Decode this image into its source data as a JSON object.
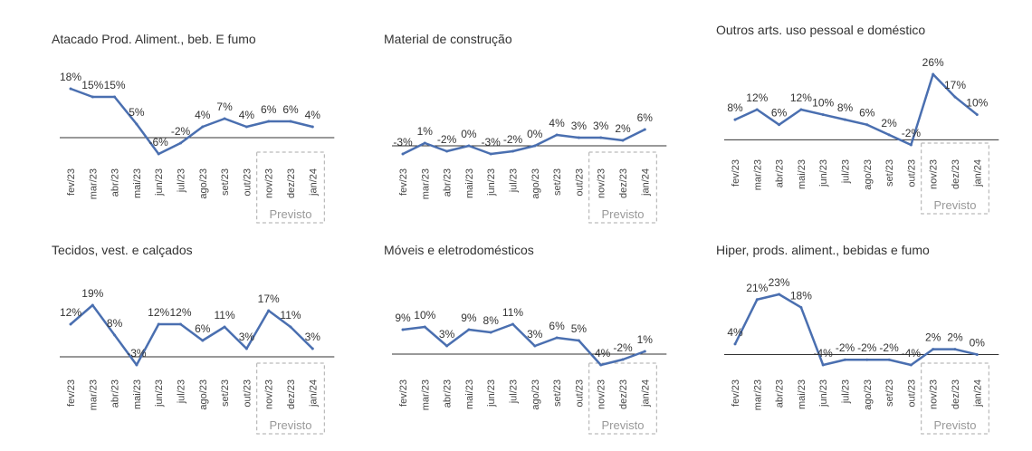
{
  "chart_data": [
    {
      "type": "line",
      "title": "Atacado Prod. Aliment., beb. E fumo",
      "color": "#4a6fb0",
      "annotation": "Previsto",
      "categories": [
        "fev/23",
        "mar/23",
        "abr/23",
        "mai/23",
        "jun/23",
        "jul/23",
        "ago/23",
        "set/23",
        "out/23",
        "nov/23",
        "dez/23",
        "jan/24"
      ],
      "values": [
        18,
        15,
        15,
        5,
        -6,
        -2,
        4,
        7,
        4,
        6,
        6,
        4
      ],
      "value_labels": [
        "18%",
        "15%",
        "15%",
        "5%",
        "-6%",
        "-2%",
        "4%",
        "7%",
        "4%",
        "6%",
        "6%",
        "4%"
      ]
    },
    {
      "type": "line",
      "title": "Material de construção",
      "color": "#4a6fb0",
      "annotation": "Previsto",
      "categories": [
        "fev/23",
        "mar/23",
        "abr/23",
        "mai/23",
        "jun/23",
        "jul/23",
        "ago/23",
        "set/23",
        "out/23",
        "nov/23",
        "dez/23",
        "jan/24"
      ],
      "values": [
        -3,
        1,
        -2,
        0,
        -3,
        -2,
        0,
        4,
        3,
        3,
        2,
        6
      ],
      "value_labels": [
        "-3%",
        "1%",
        "-2%",
        "0%",
        "-3%",
        "-2%",
        "0%",
        "4%",
        "3%",
        "3%",
        "2%",
        "6%"
      ]
    },
    {
      "type": "line",
      "title": "Outros arts. uso pessoal e doméstico",
      "color": "#4a6fb0",
      "annotation": "Previsto",
      "categories": [
        "fev/23",
        "mar/23",
        "abr/23",
        "mai/23",
        "jun/23",
        "jul/23",
        "ago/23",
        "set/23",
        "out/23",
        "nov/23",
        "dez/23",
        "jan/24"
      ],
      "values": [
        8,
        12,
        6,
        12,
        10,
        8,
        6,
        2,
        -2,
        26,
        17,
        10
      ],
      "value_labels": [
        "8%",
        "12%",
        "6%",
        "12%",
        "10%",
        "8%",
        "6%",
        "2%",
        "-2%",
        "26%",
        "17%",
        "10%"
      ]
    },
    {
      "type": "line",
      "title": "Tecidos, vest. e calçados",
      "color": "#4a6fb0",
      "annotation": "Previsto",
      "categories": [
        "fev/23",
        "mar/23",
        "abr/23",
        "mai/23",
        "jun/23",
        "jul/23",
        "ago/23",
        "set/23",
        "out/23",
        "nov/23",
        "dez/23",
        "jan/24"
      ],
      "values": [
        12,
        19,
        8,
        -3,
        12,
        12,
        6,
        11,
        3,
        17,
        11,
        3
      ],
      "value_labels": [
        "12%",
        "19%",
        "8%",
        "-3%",
        "12%",
        "12%",
        "6%",
        "11%",
        "3%",
        "17%",
        "11%",
        "3%"
      ]
    },
    {
      "type": "line",
      "title": "Móveis e eletrodomésticos",
      "color": "#4a6fb0",
      "annotation": "Previsto",
      "categories": [
        "fev/23",
        "mar/23",
        "abr/23",
        "mai/23",
        "jun/23",
        "jul/23",
        "ago/23",
        "set/23",
        "out/23",
        "nov/23",
        "dez/23",
        "jan/24"
      ],
      "values": [
        9,
        10,
        3,
        9,
        8,
        11,
        3,
        6,
        5,
        -4,
        -2,
        1
      ],
      "value_labels": [
        "9%",
        "10%",
        "3%",
        "9%",
        "8%",
        "11%",
        "3%",
        "6%",
        "5%",
        "-4%",
        "-2%",
        "1%"
      ]
    },
    {
      "type": "line",
      "title": "Hiper, prods. aliment., bebidas e fumo",
      "color": "#4a6fb0",
      "annotation": "Previsto",
      "categories": [
        "fev/23",
        "mar/23",
        "abr/23",
        "mai/23",
        "jun/23",
        "jul/23",
        "ago/23",
        "set/23",
        "out/23",
        "nov/23",
        "dez/23",
        "jan/24"
      ],
      "values": [
        4,
        21,
        23,
        18,
        -4,
        -2,
        -2,
        -2,
        -4,
        2,
        2,
        0
      ],
      "value_labels": [
        "4%",
        "21%",
        "23%",
        "18%",
        "-4%",
        "-2%",
        "-2%",
        "-2%",
        "-4%",
        "2%",
        "2%",
        "0%"
      ]
    }
  ]
}
